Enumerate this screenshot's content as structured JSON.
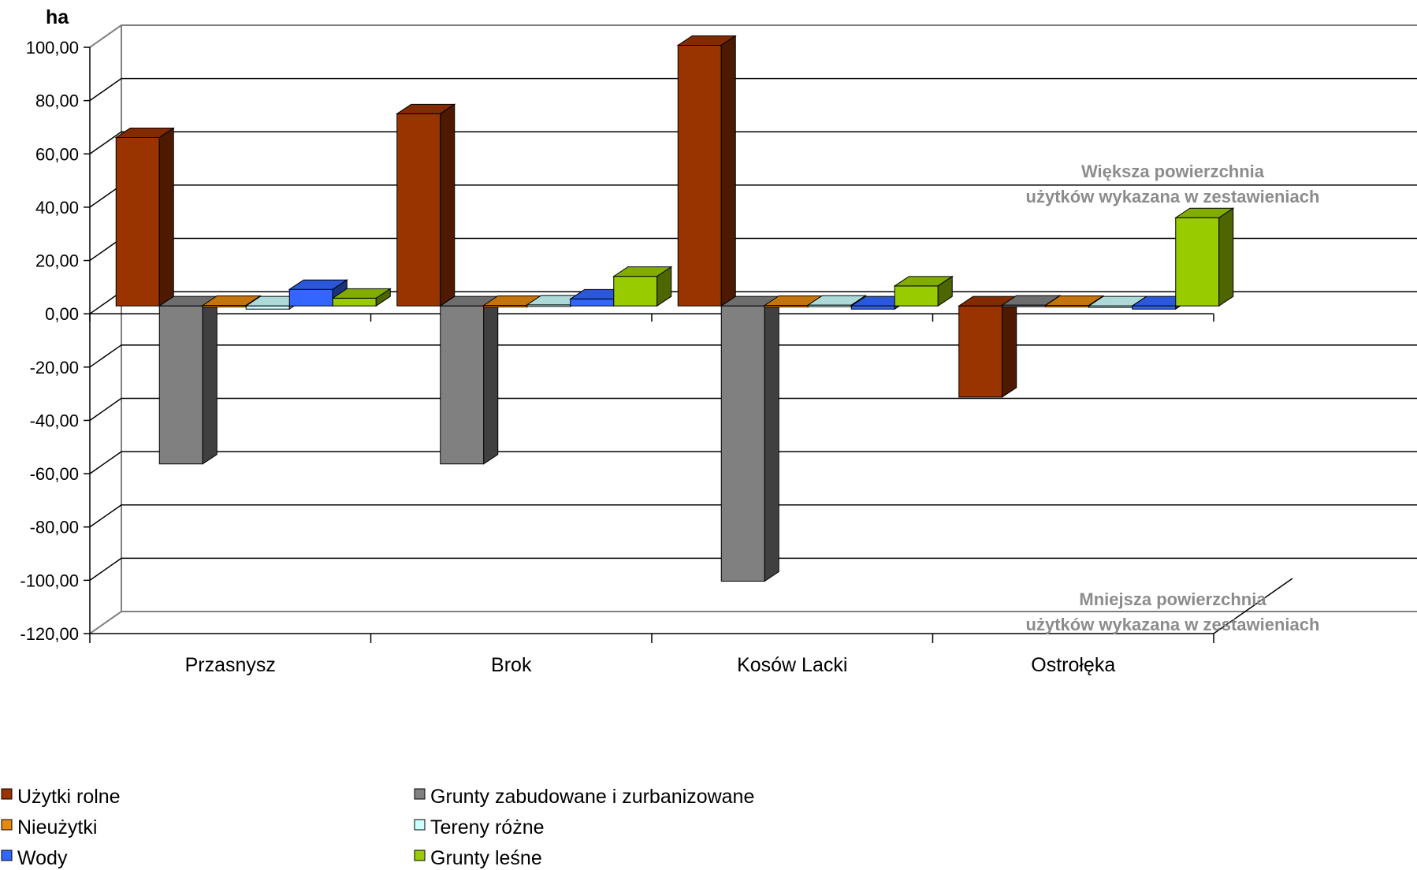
{
  "chart_data": {
    "type": "bar",
    "style": "3d-clustered-column",
    "ylabel": "ha",
    "ylim": [
      -120,
      100
    ],
    "yticks": [
      "100,00",
      "80,00",
      "60,00",
      "40,00",
      "20,00",
      "0,00",
      "-20,00",
      "-40,00",
      "-60,00",
      "-80,00",
      "-100,00",
      "-120,00"
    ],
    "grid": true,
    "legend_position": "bottom-left",
    "categories": [
      "Przasnysz",
      "Brok",
      "Kosów Lacki",
      "Ostrołęka"
    ],
    "series": [
      {
        "name": "Użytki rolne",
        "color": "#993300",
        "values": [
          63.2,
          72.1,
          97.8,
          -34.2
        ]
      },
      {
        "name": "Grunty zabudowane i zurbanizowane",
        "color": "#808080",
        "values": [
          -59.3,
          -59.3,
          -103.3,
          0.3
        ]
      },
      {
        "name": "Nieużytki",
        "color": "#e6890f",
        "values": [
          0.2,
          0.2,
          0.2,
          0.2
        ]
      },
      {
        "name": "Tereny różne",
        "color": "#ccffff",
        "values": [
          -1.2,
          0.4,
          0.3,
          0.0
        ]
      },
      {
        "name": "Wody",
        "color": "#3366ff",
        "values": [
          6.2,
          2.6,
          -1.2,
          -1.2
        ]
      },
      {
        "name": "Grunty leśne",
        "color": "#99cc00",
        "values": [
          2.9,
          11.1,
          7.5,
          33.1
        ]
      }
    ],
    "annotations": {
      "upper": [
        "Większa powierzchnia",
        "użytków wykazana w zestawieniach"
      ],
      "lower": [
        "Mniejsza powierzchnia",
        "użytków wykazana w zestawieniach"
      ]
    }
  }
}
